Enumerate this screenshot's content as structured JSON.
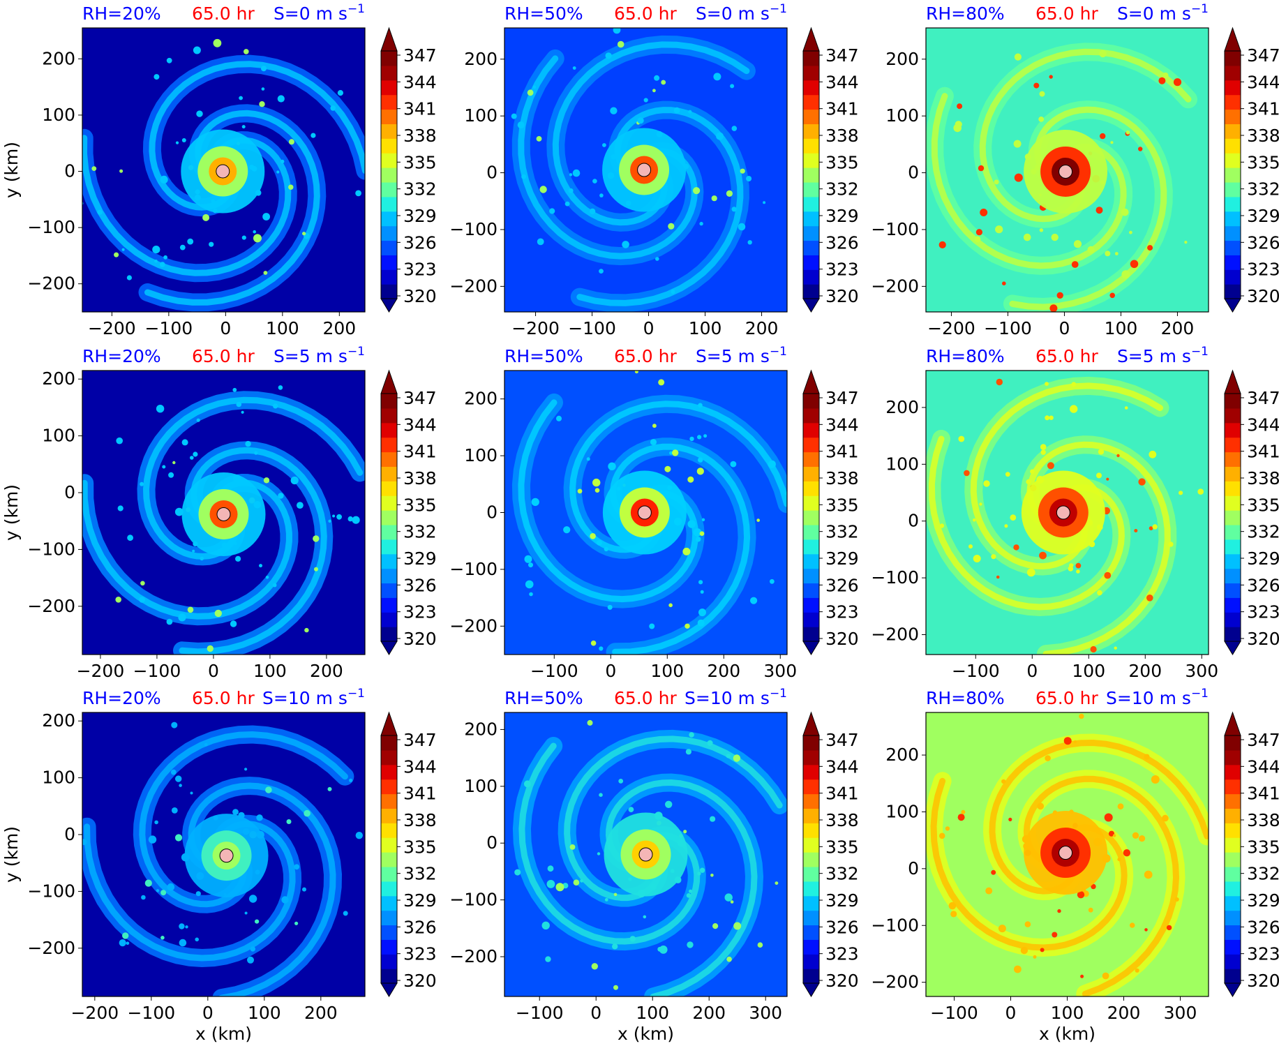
{
  "figure": {
    "time_label": "65.0 hr",
    "colorbar_ticks": [
      "320",
      "323",
      "326",
      "329",
      "332",
      "335",
      "338",
      "341",
      "344",
      "347"
    ],
    "colorbar_colors": [
      "#00008f",
      "#0000cf",
      "#0010ff",
      "#0050ff",
      "#0090ff",
      "#00c0ff",
      "#20f0e0",
      "#60ffa0",
      "#a0ff60",
      "#e0ff20",
      "#ffe000",
      "#ffb000",
      "#ff7000",
      "#ff3000",
      "#e00000",
      "#a00000",
      "#800000"
    ],
    "xlabel": "x (km)",
    "ylabel": "y (km)",
    "title_colors": {
      "rh": "#0000ff",
      "time": "#ff0000",
      "shear": "#0000ff"
    },
    "center_marker_color": "#f4b6b6"
  },
  "chart_data": [
    {
      "type": "heatmap",
      "rh_label": "RH=20%",
      "shear_label": "S=0 m s",
      "shear_sup": "−1",
      "xticks": [
        "−200",
        "−100",
        "0",
        "100",
        "200"
      ],
      "xtick_values": [
        -200,
        -100,
        0,
        100,
        200
      ],
      "xlim": [
        -252,
        245
      ],
      "yticks": [
        "−200",
        "−100",
        "0",
        "100",
        "200"
      ],
      "ytick_values": [
        -200,
        -100,
        0,
        100,
        200
      ],
      "ylim": [
        -250,
        255
      ],
      "center": [
        -5,
        0
      ],
      "env": "#0000a6",
      "rings": [
        "#0064ff",
        "#00c8ff",
        "#a0ff60",
        "#ffb000"
      ]
    },
    {
      "type": "heatmap",
      "rh_label": "RH=50%",
      "shear_label": "S=0 m s",
      "shear_sup": "−1",
      "xticks": [
        "−200",
        "−100",
        "0",
        "100",
        "200"
      ],
      "xtick_values": [
        -200,
        -100,
        0,
        100,
        200
      ],
      "xlim": [
        -255,
        245
      ],
      "yticks": [
        "−200",
        "−100",
        "0",
        "100",
        "200"
      ],
      "ytick_values": [
        -200,
        -100,
        0,
        100,
        200
      ],
      "ylim": [
        -245,
        255
      ],
      "center": [
        -8,
        5
      ],
      "env": "#0040ff",
      "rings": [
        "#0080ff",
        "#00c8ff",
        "#a0ff60",
        "#ff5000"
      ]
    },
    {
      "type": "heatmap",
      "rh_label": "RH=80%",
      "shear_label": "S=0 m s",
      "shear_sup": "−1",
      "xticks": [
        "−200",
        "−100",
        "0",
        "100",
        "200"
      ],
      "xtick_values": [
        -200,
        -100,
        0,
        100,
        200
      ],
      "xlim": [
        -245,
        255
      ],
      "yticks": [
        "−200",
        "−100",
        "0",
        "100",
        "200"
      ],
      "ytick_values": [
        -200,
        -100,
        0,
        100,
        200
      ],
      "ylim": [
        -245,
        255
      ],
      "center": [
        2,
        2
      ],
      "env": "#40f0c0",
      "rings": [
        "#60ffa0",
        "#c0ff40",
        "#ff3000",
        "#800000"
      ]
    },
    {
      "type": "heatmap",
      "rh_label": "RH=20%",
      "shear_label": "S=5 m s",
      "shear_sup": "−1",
      "xticks": [
        "−200",
        "−100",
        "0",
        "100",
        "200"
      ],
      "xtick_values": [
        -200,
        -100,
        0,
        100,
        200
      ],
      "xlim": [
        -232,
        268
      ],
      "yticks": [
        "−200",
        "−100",
        "0",
        "100",
        "200"
      ],
      "ytick_values": [
        -200,
        -100,
        0,
        100,
        200
      ],
      "ylim": [
        -285,
        215
      ],
      "center": [
        18,
        -38
      ],
      "env": "#0000a6",
      "rings": [
        "#0080ff",
        "#00c8ff",
        "#a0ff60",
        "#ff5000"
      ]
    },
    {
      "type": "heatmap",
      "rh_label": "RH=50%",
      "shear_label": "S=5 m s",
      "shear_sup": "−1",
      "xticks": [
        "−100",
        "0",
        "100",
        "200",
        "300"
      ],
      "xtick_values": [
        -100,
        0,
        100,
        200,
        300
      ],
      "xlim": [
        -188,
        312
      ],
      "yticks": [
        "−200",
        "−100",
        "0",
        "100",
        "200"
      ],
      "ytick_values": [
        -200,
        -100,
        0,
        100,
        200
      ],
      "ylim": [
        -250,
        250
      ],
      "center": [
        60,
        0
      ],
      "env": "#0050ff",
      "rings": [
        "#0090ff",
        "#00d0ff",
        "#c0ff40",
        "#ff2000"
      ]
    },
    {
      "type": "heatmap",
      "rh_label": "RH=80%",
      "shear_label": "S=5 m s",
      "shear_sup": "−1",
      "xticks": [
        "−100",
        "0",
        "100",
        "200",
        "300"
      ],
      "xtick_values": [
        -100,
        0,
        100,
        200,
        300
      ],
      "xlim": [
        -188,
        312
      ],
      "yticks": [
        "−200",
        "−100",
        "0",
        "100",
        "200"
      ],
      "ytick_values": [
        -200,
        -100,
        0,
        100,
        200
      ],
      "ylim": [
        -235,
        265
      ],
      "center": [
        55,
        15
      ],
      "env": "#40f0c0",
      "rings": [
        "#80ff80",
        "#e0ff20",
        "#ff5000",
        "#c00000"
      ]
    },
    {
      "type": "heatmap",
      "rh_label": "RH=20%",
      "shear_label": "S=10 m s",
      "shear_sup": "−1",
      "xticks": [
        "−200",
        "−100",
        "0",
        "100",
        "200"
      ],
      "xtick_values": [
        -200,
        -100,
        0,
        100,
        200
      ],
      "xlim": [
        -222,
        278
      ],
      "yticks": [
        "−200",
        "−100",
        "0",
        "100",
        "200"
      ],
      "ytick_values": [
        -200,
        -100,
        0,
        100,
        200
      ],
      "ylim": [
        -285,
        215
      ],
      "center": [
        33,
        -37
      ],
      "env": "#0000a6",
      "rings": [
        "#0070ff",
        "#00b0ff",
        "#40f0c0",
        "#a0ff60"
      ]
    },
    {
      "type": "heatmap",
      "rh_label": "RH=50%",
      "shear_label": "S=10 m s",
      "shear_sup": "−1",
      "xticks": [
        "−100",
        "0",
        "100",
        "200",
        "300"
      ],
      "xtick_values": [
        -100,
        0,
        100,
        200,
        300
      ],
      "xlim": [
        -162,
        338
      ],
      "yticks": [
        "−200",
        "−100",
        "0",
        "100",
        "200"
      ],
      "ytick_values": [
        -200,
        -100,
        0,
        100,
        200
      ],
      "ylim": [
        -270,
        230
      ],
      "center": [
        88,
        -20
      ],
      "env": "#0050ff",
      "rings": [
        "#00a0ff",
        "#20e0e0",
        "#a0ff60",
        "#ffd000"
      ]
    },
    {
      "type": "heatmap",
      "rh_label": "RH=80%",
      "shear_label": "S=10 m s",
      "shear_sup": "−1",
      "xticks": [
        "−100",
        "0",
        "100",
        "200",
        "300"
      ],
      "xtick_values": [
        -100,
        0,
        100,
        200,
        300
      ],
      "xlim": [
        -150,
        350
      ],
      "yticks": [
        "−200",
        "−100",
        "0",
        "100",
        "200"
      ],
      "ytick_values": [
        -200,
        -100,
        0,
        100,
        200
      ],
      "ylim": [
        -225,
        275
      ],
      "center": [
        97,
        28
      ],
      "env": "#a0ff60",
      "rings": [
        "#e0ff20",
        "#ffc000",
        "#ff3000",
        "#b00000"
      ]
    }
  ]
}
